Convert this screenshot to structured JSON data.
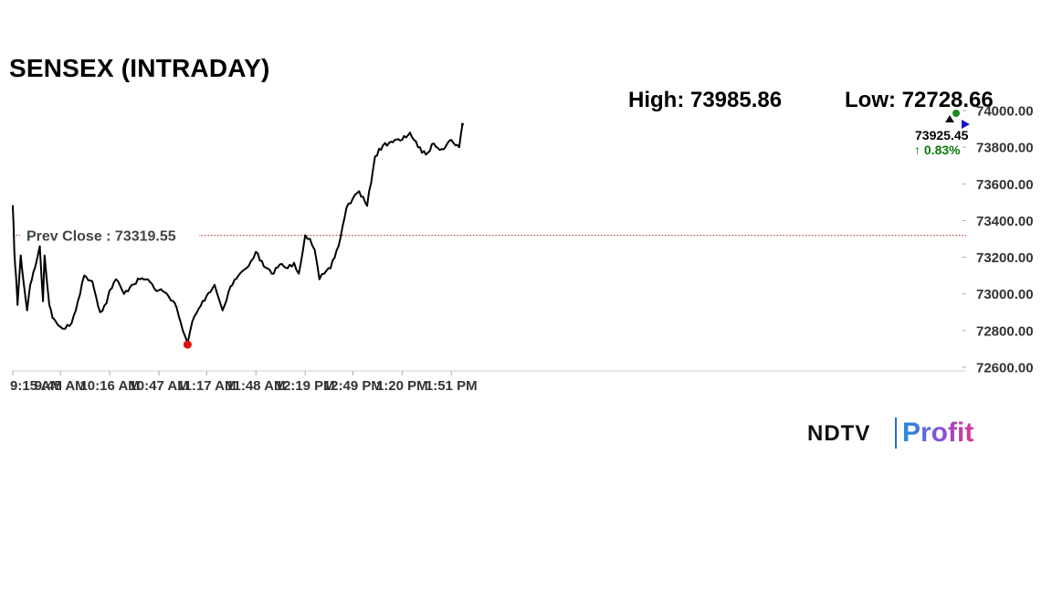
{
  "title": "SENSEX (INTRADAY)",
  "high_label": "High: 73985.86",
  "low_label": "Low: 72728.66",
  "brand": {
    "ndtv": "NDTV",
    "profit": "Profit"
  },
  "colors": {
    "line": "#000000",
    "low_marker": "#e01010",
    "high_marker": "#1a8a1a",
    "last_marker": "#1515c0",
    "prev_close_line": "#b22222",
    "change_up": "#0a7a0a"
  },
  "chart_data": {
    "type": "line",
    "title": "SENSEX (INTRADAY)",
    "ylim": [
      72600,
      74000
    ],
    "yticks": [
      "74000.00",
      "73800.00",
      "73600.00",
      "73400.00",
      "73200.00",
      "73000.00",
      "72800.00",
      "72600.00"
    ],
    "xticks": [
      "9:15 AM",
      "9:45 AM",
      "10:16 AM",
      "10:47 AM",
      "11:17 AM",
      "11:48 AM",
      "12:19 PM",
      "12:49 PM",
      "1:20 PM",
      "1:51 PM"
    ],
    "prev_close": {
      "label": "Prev Close : 73319.55",
      "value": 73319.55
    },
    "high": 73985.86,
    "low": 72728.66,
    "last": {
      "value": "73925.45",
      "change": "0.83%"
    },
    "series": [
      {
        "x": [
          "9:15 AM",
          "9:16 AM",
          "9:17 AM",
          "9:18 AM",
          "9:20 AM",
          "9:22 AM",
          "9:24 AM",
          "9:26 AM",
          "9:28 AM",
          "9:30 AM",
          "9:32 AM",
          "9:34 AM",
          "9:35 AM",
          "9:38 AM",
          "9:40 AM",
          "9:42 AM",
          "9:45 AM",
          "9:48 AM",
          "9:52 AM",
          "9:56 AM",
          "10:00 AM",
          "10:05 AM",
          "10:10 AM",
          "10:14 AM",
          "10:16 AM",
          "10:20 AM",
          "10:25 AM",
          "10:30 AM",
          "10:35 AM",
          "10:40 AM",
          "10:44 AM",
          "10:47 AM",
          "10:52 AM",
          "10:57 AM",
          "11:02 AM",
          "11:05 AM",
          "11:08 AM",
          "11:12 AM",
          "11:17 AM",
          "11:22 AM",
          "11:27 AM",
          "11:32 AM",
          "11:37 AM",
          "11:42 AM",
          "11:45 AM",
          "11:48 AM",
          "11:53 AM",
          "11:58 AM",
          "12:03 PM",
          "12:08 PM",
          "12:12 PM",
          "12:15 PM",
          "12:19 PM",
          "12:22 PM",
          "12:25 PM",
          "12:28 PM",
          "12:31 PM",
          "12:35 PM",
          "12:40 PM",
          "12:45 PM",
          "12:49 PM",
          "12:53 PM",
          "12:58 PM",
          "1:03 PM",
          "1:08 PM",
          "1:13 PM",
          "1:20 PM",
          "1:25 PM",
          "1:30 PM",
          "1:35 PM",
          "1:40 PM",
          "1:45 PM",
          "1:51 PM",
          "1:56 PM",
          "1:58 PM"
        ],
        "y": [
          73480,
          73230,
          73100,
          72940,
          73210,
          73050,
          72910,
          73050,
          73120,
          73180,
          73260,
          72960,
          73210,
          72940,
          72870,
          72850,
          72820,
          72810,
          72840,
          72960,
          73100,
          73070,
          72900,
          72950,
          73020,
          73080,
          73000,
          73050,
          73080,
          73080,
          73030,
          73020,
          73000,
          72950,
          72800,
          72730,
          72850,
          72920,
          72990,
          73050,
          72910,
          73040,
          73100,
          73140,
          73180,
          73230,
          73150,
          73110,
          73160,
          73140,
          73170,
          73110,
          73320,
          73300,
          73240,
          73080,
          73110,
          73140,
          73260,
          73470,
          73520,
          73560,
          73480,
          73750,
          73810,
          73830,
          73840,
          73880,
          73800,
          73760,
          73820,
          73790,
          73840,
          73800,
          73925
        ]
      }
    ]
  }
}
